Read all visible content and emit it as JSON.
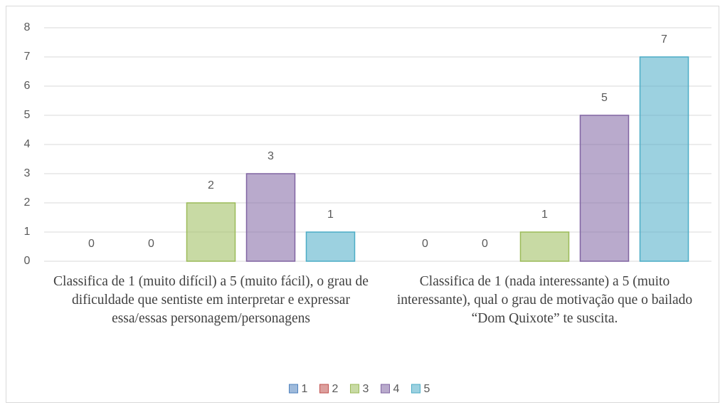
{
  "chart_data": {
    "type": "bar",
    "categories": [
      "Classifica de 1 (muito difícil) a 5 (muito fácil), o grau de dificuldade que sentiste em interpretar e expressar essa/essas personagem/personagens",
      "Classifica de 1 (nada interessante) a 5 (muito interessante), qual o grau de motivação que o bailado “Dom Quixote” te suscita."
    ],
    "series": [
      {
        "name": "1",
        "color": "#4f81bd",
        "values": [
          0,
          0
        ]
      },
      {
        "name": "2",
        "color": "#c0504d",
        "values": [
          0,
          0
        ]
      },
      {
        "name": "3",
        "color": "#9bbb59",
        "values": [
          2,
          1
        ]
      },
      {
        "name": "4",
        "color": "#8064a2",
        "values": [
          3,
          5
        ]
      },
      {
        "name": "5",
        "color": "#4bacc6",
        "values": [
          1,
          7
        ]
      }
    ],
    "ylim": [
      0,
      8
    ],
    "yticks": [
      0,
      1,
      2,
      3,
      4,
      5,
      6,
      7,
      8
    ],
    "grid": true,
    "legend": "bottom"
  }
}
